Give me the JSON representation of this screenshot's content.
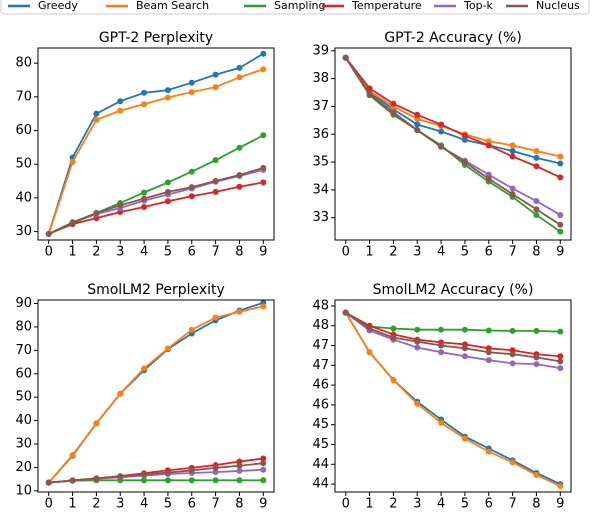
{
  "chart_data": [
    {
      "type": "line",
      "title": "GPT-2 Perplexity",
      "x": [
        0,
        1,
        2,
        3,
        4,
        5,
        6,
        7,
        8,
        9
      ],
      "xlim": [
        -0.45,
        9.45
      ],
      "xticks": [
        0,
        1,
        2,
        3,
        4,
        5,
        6,
        7,
        8,
        9
      ],
      "ylim": [
        27.5,
        84.5
      ],
      "yticks": [
        30,
        40,
        50,
        60,
        70,
        80
      ],
      "series": [
        {
          "name": "Greedy",
          "color": "#1f77b4",
          "values": [
            29.3,
            52,
            65,
            68.7,
            71.2,
            72,
            74.2,
            76.6,
            78.6,
            82.8
          ]
        },
        {
          "name": "Beam Search",
          "color": "#ff7f0e",
          "values": [
            29.3,
            50.7,
            63.2,
            65.9,
            67.8,
            69.8,
            71.4,
            72.9,
            75.8,
            78.2
          ]
        },
        {
          "name": "Sampling",
          "color": "#2ca02c",
          "values": [
            29.3,
            32.8,
            35.5,
            38.5,
            41.6,
            44.6,
            47.8,
            51.2,
            54.9,
            58.6
          ]
        },
        {
          "name": "Temperature",
          "color": "#d62728",
          "values": [
            29.3,
            32.2,
            34,
            35.8,
            37.3,
            39,
            40.5,
            41.8,
            43.3,
            44.6
          ]
        },
        {
          "name": "Top-k",
          "color": "#9467bd",
          "values": [
            29.3,
            32.6,
            35.2,
            37,
            39.2,
            41,
            42.8,
            44.8,
            46.5,
            48.3
          ]
        },
        {
          "name": "Nucleus",
          "color": "#8c564b",
          "values": [
            29.3,
            32.5,
            35.5,
            37.8,
            39.8,
            41.8,
            43.2,
            45,
            46.8,
            48.9
          ]
        }
      ]
    },
    {
      "type": "line",
      "title": "GPT-2 Accuracy (%)",
      "x": [
        0,
        1,
        2,
        3,
        4,
        5,
        6,
        7,
        8,
        9
      ],
      "xlim": [
        -0.45,
        9.45
      ],
      "xticks": [
        0,
        1,
        2,
        3,
        4,
        5,
        6,
        7,
        8,
        9
      ],
      "ylim": [
        32.2,
        39.1
      ],
      "yticks": [
        33,
        34,
        35,
        36,
        37,
        38,
        39
      ],
      "series": [
        {
          "name": "Greedy",
          "color": "#1f77b4",
          "values": [
            38.75,
            37.5,
            36.9,
            36.35,
            36.1,
            35.8,
            35.6,
            35.4,
            35.15,
            34.95
          ]
        },
        {
          "name": "Beam Search",
          "color": "#ff7f0e",
          "values": [
            38.75,
            37.55,
            37.0,
            36.55,
            36.3,
            36.0,
            35.75,
            35.6,
            35.4,
            35.2
          ]
        },
        {
          "name": "Sampling",
          "color": "#2ca02c",
          "values": [
            38.75,
            37.4,
            36.7,
            36.15,
            35.6,
            34.9,
            34.3,
            33.75,
            33.1,
            32.5
          ]
        },
        {
          "name": "Temperature",
          "color": "#d62728",
          "values": [
            38.75,
            37.65,
            37.1,
            36.7,
            36.35,
            35.95,
            35.6,
            35.2,
            34.85,
            34.45
          ]
        },
        {
          "name": "Top-k",
          "color": "#9467bd",
          "values": [
            38.75,
            37.45,
            36.8,
            36.15,
            35.55,
            35.05,
            34.55,
            34.05,
            33.6,
            33.1
          ]
        },
        {
          "name": "Nucleus",
          "color": "#8c564b",
          "values": [
            38.75,
            37.45,
            36.75,
            36.15,
            35.55,
            35.0,
            34.4,
            33.85,
            33.3,
            32.75
          ]
        }
      ]
    },
    {
      "type": "line",
      "title": "SmolLM2 Perplexity",
      "x": [
        0,
        1,
        2,
        3,
        4,
        5,
        6,
        7,
        8,
        9
      ],
      "xlim": [
        -0.45,
        9.45
      ],
      "xticks": [
        0,
        1,
        2,
        3,
        4,
        5,
        6,
        7,
        8,
        9
      ],
      "ylim": [
        9.5,
        91.5
      ],
      "yticks": [
        10,
        20,
        30,
        40,
        50,
        60,
        70,
        80,
        90
      ],
      "series": [
        {
          "name": "Greedy",
          "color": "#1f77b4",
          "values": [
            13.5,
            25,
            38.8,
            51.5,
            61.5,
            70.5,
            77.2,
            82.8,
            87,
            90.3
          ]
        },
        {
          "name": "Beam Search",
          "color": "#ff7f0e",
          "values": [
            13.5,
            25.3,
            38.8,
            51.5,
            62.3,
            70.8,
            78.8,
            84,
            86.5,
            88.8
          ]
        },
        {
          "name": "Sampling",
          "color": "#2ca02c",
          "values": [
            13.5,
            14.3,
            14.5,
            14.5,
            14.5,
            14.5,
            14.5,
            14.5,
            14.5,
            14.5
          ]
        },
        {
          "name": "Temperature",
          "color": "#d62728",
          "values": [
            13.5,
            14.5,
            15.3,
            16.3,
            17.5,
            18.8,
            19.8,
            21,
            22.5,
            23.8
          ]
        },
        {
          "name": "Top-k",
          "color": "#9467bd",
          "values": [
            13.5,
            14.3,
            15.2,
            15.8,
            16.5,
            17.2,
            17.6,
            18,
            18.5,
            19
          ]
        },
        {
          "name": "Nucleus",
          "color": "#8c564b",
          "values": [
            13.5,
            14.4,
            15.3,
            16,
            17,
            17.8,
            18.7,
            19.8,
            20.7,
            21.8
          ]
        }
      ]
    },
    {
      "type": "line",
      "title": "SmolLM2 Accuracy (%)",
      "x": [
        0,
        1,
        2,
        3,
        4,
        5,
        6,
        7,
        8,
        9
      ],
      "xlim": [
        -0.45,
        9.45
      ],
      "xticks": [
        0,
        1,
        2,
        3,
        4,
        5,
        6,
        7,
        8,
        9
      ],
      "ylim": [
        43.5,
        48.35
      ],
      "yticks": [
        {
          "value": 48.2,
          "label": "48"
        },
        {
          "value": 47.7,
          "label": "48"
        },
        {
          "value": 47.2,
          "label": "47"
        },
        {
          "value": 46.7,
          "label": "47"
        },
        {
          "value": 46.2,
          "label": "46"
        },
        {
          "value": 45.7,
          "label": "46"
        },
        {
          "value": 45.2,
          "label": "45"
        },
        {
          "value": 44.7,
          "label": "45"
        },
        {
          "value": 44.2,
          "label": "44"
        },
        {
          "value": 43.7,
          "label": "44"
        }
      ],
      "series": [
        {
          "name": "Greedy",
          "color": "#1f77b4",
          "values": [
            48.03,
            47.03,
            46.33,
            45.78,
            45.33,
            44.9,
            44.6,
            44.3,
            43.98,
            43.7
          ]
        },
        {
          "name": "Beam Search",
          "color": "#ff7f0e",
          "values": [
            48.03,
            47.03,
            46.33,
            45.73,
            45.25,
            44.85,
            44.52,
            44.25,
            43.93,
            43.65
          ]
        },
        {
          "name": "Sampling",
          "color": "#2ca02c",
          "values": [
            48.03,
            47.68,
            47.63,
            47.6,
            47.6,
            47.6,
            47.58,
            47.57,
            47.57,
            47.55
          ]
        },
        {
          "name": "Temperature",
          "color": "#d62728",
          "values": [
            48.03,
            47.7,
            47.48,
            47.35,
            47.28,
            47.23,
            47.13,
            47.08,
            46.98,
            46.93
          ]
        },
        {
          "name": "Top-k",
          "color": "#9467bd",
          "values": [
            48.03,
            47.58,
            47.35,
            47.15,
            47.03,
            46.93,
            46.83,
            46.75,
            46.73,
            46.63
          ]
        },
        {
          "name": "Nucleus",
          "color": "#8c564b",
          "values": [
            48.03,
            47.63,
            47.4,
            47.3,
            47.2,
            47.13,
            47.03,
            46.98,
            46.9,
            46.8
          ]
        }
      ]
    }
  ]
}
